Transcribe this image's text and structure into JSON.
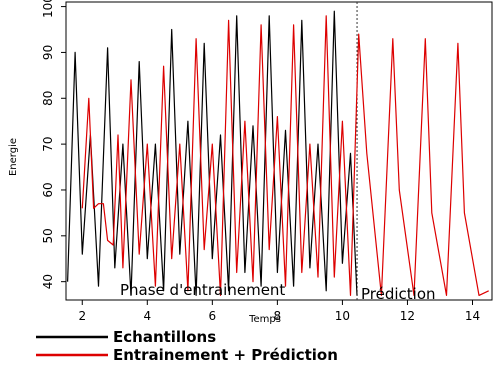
{
  "chart_data": {
    "type": "line",
    "xlabel": "Temps",
    "ylabel": "Energie",
    "xlim": [
      1.5,
      14.6
    ],
    "ylim": [
      36,
      101
    ],
    "x_ticks": [
      2,
      4,
      6,
      8,
      10,
      12,
      14
    ],
    "y_ticks": [
      40,
      50,
      60,
      70,
      80,
      90,
      100
    ],
    "divider_x": 10.45,
    "phase_labels": {
      "training": "Phase d'entrainement",
      "prediction": "Prédiction"
    },
    "series": [
      {
        "name": "Echantillons",
        "color": "#000000",
        "x": [
          1.55,
          1.78,
          2.0,
          2.25,
          2.5,
          2.78,
          3.0,
          3.25,
          3.5,
          3.75,
          4.0,
          4.25,
          4.5,
          4.75,
          5.0,
          5.25,
          5.5,
          5.75,
          6.0,
          6.25,
          6.5,
          6.75,
          7.0,
          7.25,
          7.5,
          7.75,
          8.0,
          8.25,
          8.5,
          8.75,
          9.0,
          9.25,
          9.5,
          9.75,
          10.0,
          10.25,
          10.45
        ],
        "values": [
          40,
          90,
          46,
          72,
          39,
          91,
          43,
          70,
          37,
          88,
          45,
          70,
          38,
          95,
          46,
          75,
          37,
          92,
          45,
          72,
          38,
          98,
          42,
          74,
          39,
          98,
          42,
          73,
          39,
          97,
          43,
          70,
          38,
          99,
          44,
          68,
          37
        ]
      },
      {
        "name": "Entrainement + Prédiction",
        "color": "#dd0000",
        "x": [
          2.0,
          2.2,
          2.35,
          2.5,
          2.65,
          2.78,
          2.95,
          3.1,
          3.25,
          3.5,
          3.75,
          4.0,
          4.25,
          4.5,
          4.75,
          5.0,
          5.25,
          5.5,
          5.75,
          6.0,
          6.25,
          6.5,
          6.75,
          7.0,
          7.25,
          7.5,
          7.75,
          8.0,
          8.25,
          8.5,
          8.75,
          9.0,
          9.25,
          9.5,
          9.75,
          10.0,
          10.25,
          10.5,
          10.75,
          11.2,
          11.55,
          11.75,
          12.2,
          12.55,
          12.75,
          13.2,
          13.55,
          13.75,
          14.2,
          14.5
        ],
        "values": [
          56,
          80,
          56,
          57,
          57,
          49,
          48,
          72,
          43,
          84,
          46,
          70,
          39,
          87,
          45,
          70,
          38,
          93,
          47,
          70,
          37,
          97,
          42,
          75,
          40,
          96,
          47,
          76,
          39,
          96,
          42,
          70,
          41,
          98,
          41,
          75,
          37,
          94,
          68,
          37,
          93,
          60,
          37,
          93,
          55,
          37,
          92,
          55,
          37,
          38
        ]
      }
    ]
  }
}
